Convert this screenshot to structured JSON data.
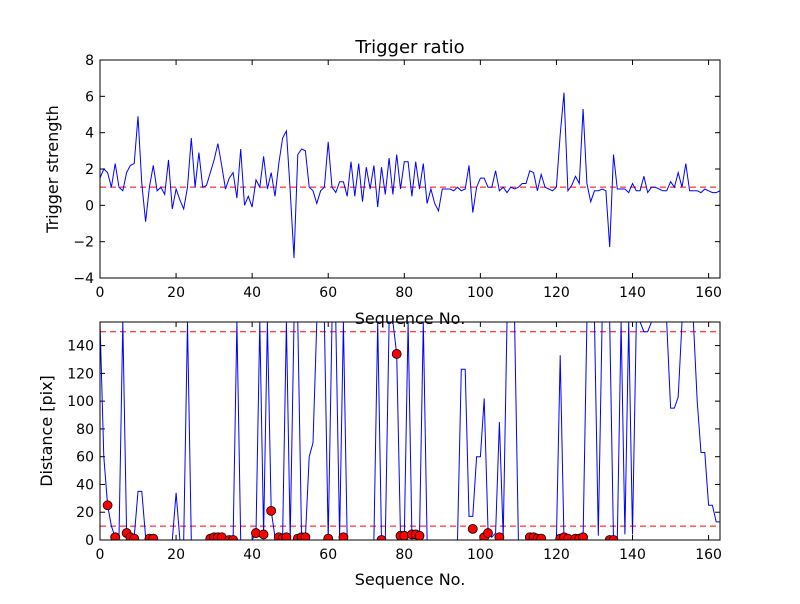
{
  "chart_data": [
    {
      "type": "line",
      "title": "Trigger ratio",
      "xlabel": "Sequence No.",
      "ylabel": "Trigger strength",
      "xlim": [
        0,
        163
      ],
      "ylim": [
        -4,
        8
      ],
      "xticks": [
        0,
        20,
        40,
        60,
        80,
        100,
        120,
        140,
        160
      ],
      "yticks": [
        -4,
        -2,
        0,
        2,
        4,
        6,
        8
      ],
      "grid": false,
      "line_color": "#0000ff",
      "threshold": {
        "value": 1.0,
        "color": "#ff0000",
        "style": "dashed"
      },
      "series": [
        {
          "x": [
            0,
            1,
            2,
            3,
            4,
            5,
            6,
            7,
            8,
            9,
            10,
            11,
            12,
            13,
            14,
            15,
            16,
            17,
            18,
            19,
            20,
            21,
            22,
            23,
            24,
            25,
            26,
            27,
            28,
            29,
            30,
            31,
            32,
            33,
            34,
            35,
            36,
            37,
            38,
            39,
            40,
            41,
            42,
            43,
            44,
            45,
            46,
            47,
            48,
            49,
            50,
            51,
            52,
            53,
            54,
            55,
            56,
            57,
            58,
            59,
            60,
            61,
            62,
            63,
            64,
            65,
            66,
            67,
            68,
            69,
            70,
            71,
            72,
            73,
            74,
            75,
            76,
            77,
            78,
            79,
            80,
            81,
            82,
            83,
            84,
            85,
            86,
            87,
            88,
            89,
            90,
            91,
            92,
            93,
            94,
            95,
            96,
            97,
            98,
            99,
            100,
            101,
            102,
            103,
            104,
            105,
            106,
            107,
            108,
            109,
            110,
            111,
            112,
            113,
            114,
            115,
            116,
            117,
            118,
            119,
            120,
            121,
            122,
            123,
            124,
            125,
            126,
            127,
            128,
            129,
            130,
            131,
            132,
            133,
            134,
            135,
            136,
            137,
            138,
            139,
            140,
            141,
            142,
            143,
            144,
            145,
            146,
            147,
            148,
            149,
            150,
            151,
            152,
            153,
            154,
            155,
            156,
            157,
            158,
            159,
            160,
            161,
            162,
            163
          ],
          "y": [
            1.5,
            2.0,
            1.8,
            1.0,
            2.3,
            1.0,
            0.8,
            1.8,
            2.2,
            2.3,
            4.9,
            1.2,
            -0.9,
            1.0,
            2.2,
            0.8,
            1.0,
            0.6,
            2.5,
            -0.2,
            0.9,
            0.3,
            -0.2,
            1.0,
            3.7,
            1.0,
            2.9,
            1.0,
            1.1,
            1.8,
            2.5,
            3.4,
            2.2,
            0.9,
            1.5,
            1.8,
            0.4,
            3.1,
            0.0,
            0.5,
            -0.1,
            1.4,
            1.0,
            2.7,
            0.9,
            1.8,
            0.5,
            2.3,
            3.7,
            4.1,
            0.8,
            -2.9,
            2.8,
            3.1,
            3.0,
            1.0,
            0.8,
            0.1,
            0.8,
            1.0,
            3.5,
            1.0,
            0.7,
            1.3,
            1.3,
            0.5,
            2.4,
            0.5,
            2.3,
            0.2,
            2.1,
            0.9,
            2.2,
            -0.1,
            2.1,
            0.6,
            2.6,
            0.6,
            2.8,
            0.9,
            2.4,
            2.4,
            0.5,
            2.4,
            0.9,
            2.3,
            0.1,
            0.9,
            0.1,
            -0.3,
            0.9,
            0.9,
            0.9,
            0.8,
            1.0,
            0.8,
            0.9,
            2.2,
            -0.4,
            1.0,
            1.5,
            1.5,
            1.0,
            1.0,
            1.9,
            0.8,
            1.0,
            0.7,
            1.0,
            0.9,
            1.0,
            1.2,
            1.2,
            1.9,
            1.8,
            0.8,
            1.7,
            1.0,
            0.9,
            0.8,
            1.0,
            3.9,
            6.2,
            0.8,
            1.1,
            1.6,
            1.2,
            5.3,
            1.2,
            0.2,
            0.8,
            0.8,
            0.9,
            0.8,
            -2.3,
            2.8,
            0.9,
            0.9,
            0.9,
            0.7,
            1.2,
            0.8,
            0.8,
            1.6,
            0.7,
            1.0,
            1.0,
            0.9,
            0.8,
            0.8,
            1.3,
            1.0,
            1.8,
            1.0,
            2.3,
            0.8,
            0.8,
            0.8,
            0.7,
            0.9,
            0.8,
            0.7,
            0.7,
            0.8
          ]
        }
      ]
    },
    {
      "type": "line",
      "title": "",
      "xlabel": "Sequence No.",
      "ylabel": "Distance [pix]",
      "xlim": [
        0,
        163
      ],
      "ylim": [
        0,
        157
      ],
      "xticks": [
        0,
        20,
        40,
        60,
        80,
        100,
        120,
        140,
        160
      ],
      "yticks": [
        0,
        20,
        40,
        60,
        80,
        100,
        120,
        140
      ],
      "grid": false,
      "line_color": "#0000ff",
      "marker_color": "#ff0000",
      "thresholds": [
        {
          "value": 150,
          "color": "#ff0000",
          "style": "dashed"
        },
        {
          "value": 10,
          "color": "#ff0000",
          "style": "dashed"
        }
      ],
      "series": [
        {
          "name": "distance",
          "x": [
            0,
            1,
            2,
            3,
            4,
            5,
            6,
            7,
            8,
            9,
            10,
            11,
            12,
            13,
            14,
            15,
            16,
            17,
            18,
            19,
            20,
            21,
            22,
            23,
            24,
            25,
            26,
            27,
            28,
            29,
            30,
            31,
            32,
            33,
            34,
            35,
            36,
            37,
            38,
            39,
            40,
            41,
            42,
            43,
            44,
            45,
            46,
            47,
            48,
            49,
            50,
            51,
            52,
            53,
            54,
            55,
            56,
            57,
            58,
            59,
            60,
            61,
            62,
            63,
            64,
            65,
            66,
            67,
            68,
            69,
            70,
            71,
            72,
            73,
            74,
            75,
            76,
            77,
            78,
            79,
            80,
            81,
            82,
            83,
            84,
            85,
            86,
            87,
            88,
            89,
            90,
            91,
            92,
            93,
            94,
            95,
            96,
            97,
            98,
            99,
            100,
            101,
            102,
            103,
            104,
            105,
            106,
            107,
            108,
            109,
            110,
            111,
            112,
            113,
            114,
            115,
            116,
            117,
            118,
            119,
            120,
            121,
            122,
            123,
            124,
            125,
            126,
            127,
            128,
            129,
            130,
            131,
            132,
            133,
            134,
            135,
            136,
            137,
            138,
            139,
            140,
            141,
            142,
            143,
            144,
            145,
            146,
            147,
            148,
            149,
            150,
            151,
            152,
            153,
            154,
            155,
            156,
            157,
            158,
            159,
            160,
            161,
            162,
            163
          ],
          "y": [
            157,
            60,
            25,
            10,
            2,
            2,
            157,
            5,
            2,
            2,
            35,
            35,
            2,
            1,
            1,
            0,
            0,
            0,
            0,
            0,
            34,
            0,
            0,
            157,
            0,
            0,
            0,
            0,
            0,
            0,
            1,
            2,
            2,
            0,
            0,
            0,
            157,
            0,
            0,
            0,
            0,
            5,
            157,
            4,
            157,
            21,
            2,
            1,
            2,
            157,
            1,
            157,
            157,
            1,
            2,
            60,
            70,
            157,
            157,
            157,
            0,
            157,
            157,
            2,
            157,
            0,
            0,
            0,
            0,
            0,
            0,
            0,
            0,
            157,
            0,
            0,
            157,
            157,
            134,
            3,
            3,
            157,
            4,
            4,
            3,
            157,
            0,
            0,
            0,
            0,
            0,
            0,
            0,
            0,
            0,
            123,
            123,
            17,
            17,
            60,
            60,
            102,
            8,
            2,
            5,
            85,
            2,
            157,
            157,
            157,
            0,
            0,
            0,
            2,
            2,
            1,
            1,
            0,
            0,
            0,
            0,
            133,
            0,
            2,
            1,
            1,
            1,
            2,
            157,
            157,
            157,
            3,
            157,
            157,
            157,
            0,
            0,
            157,
            4,
            157,
            4,
            157,
            157,
            150,
            150,
            157,
            157,
            157,
            157,
            157,
            95,
            95,
            103,
            157,
            157,
            157,
            157,
            100,
            63,
            63,
            25,
            25,
            13,
            13
          ]
        },
        {
          "name": "markers",
          "x": [
            2,
            4,
            7,
            8,
            9,
            13,
            14,
            29,
            30,
            31,
            32,
            34,
            35,
            41,
            43,
            45,
            47,
            48,
            49,
            52,
            53,
            54,
            60,
            64,
            74,
            78,
            79,
            80,
            82,
            83,
            84,
            98,
            101,
            102,
            105,
            113,
            114,
            115,
            116,
            121,
            122,
            123,
            125,
            126,
            127,
            134,
            135
          ],
          "y": [
            25,
            2,
            5,
            2,
            1,
            1,
            1,
            1,
            2,
            2,
            2,
            0,
            0,
            5,
            4,
            21,
            2,
            1,
            2,
            1,
            2,
            2,
            1,
            2,
            0,
            134,
            3,
            3,
            4,
            4,
            3,
            8,
            2,
            5,
            2,
            2,
            2,
            1,
            1,
            1,
            2,
            1,
            1,
            1,
            2,
            0,
            0
          ]
        }
      ]
    }
  ]
}
